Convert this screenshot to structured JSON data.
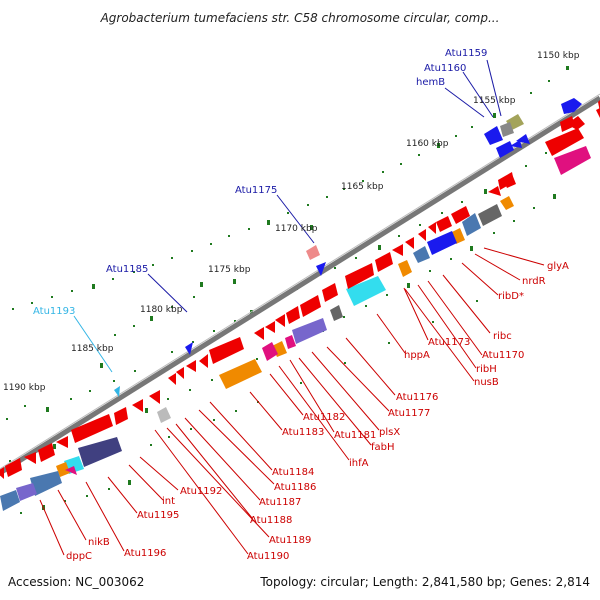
{
  "title": "Agrobacterium tumefaciens str. C58 chromosome circular, comp...",
  "footer": {
    "accession": "Accession: NC_003062",
    "summary": "Topology: circular; Length: 2,841,580 bp; Genes: 2,814"
  },
  "colors": {
    "backbone": "#777777",
    "scale_tick": "#1f7a1f",
    "minus_strand_label": "#cc0000",
    "plus_strand_label": "#1a1aa6",
    "highlight_label": "#33b5e5",
    "red_gene": "#ee0000",
    "blue_gene": "#1a1aee",
    "cyan_gene": "#33ddee",
    "magenta_gene": "#e0107f",
    "orange_gene": "#f08a00",
    "purple_gene": "#7766cc",
    "gray_gene": "#888888",
    "olive_gene": "#a3a35a",
    "steel_gene": "#4a78b0",
    "navy_gene": "#404080"
  },
  "scale_labels": [
    "1150 kbp",
    "1155 kbp",
    "1160 kbp",
    "1165 kbp",
    "1170 kbp",
    "1175 kbp",
    "1180 kbp",
    "1185 kbp",
    "1190 kbp"
  ],
  "upper_gene_labels": [
    "Atu1159",
    "Atu1160",
    "hemB",
    "Atu1175",
    "Atu1185",
    "Atu1193"
  ],
  "lower_gene_labels": [
    "glyA",
    "nrdR",
    "ribD*",
    "ribc",
    "Atu1170",
    "ribH",
    "nusB",
    "Atu1173",
    "hppA",
    "Atu1176",
    "Atu1177",
    "plsX",
    "fabH",
    "Atu1181",
    "ihfA",
    "Atu1182",
    "Atu1183",
    "Atu1184",
    "Atu1186",
    "Atu1187",
    "Atu1188",
    "Atu1189",
    "Atu1190",
    "Atu1192",
    "int",
    "Atu1195",
    "Atu1196",
    "nikB",
    "dppC"
  ]
}
